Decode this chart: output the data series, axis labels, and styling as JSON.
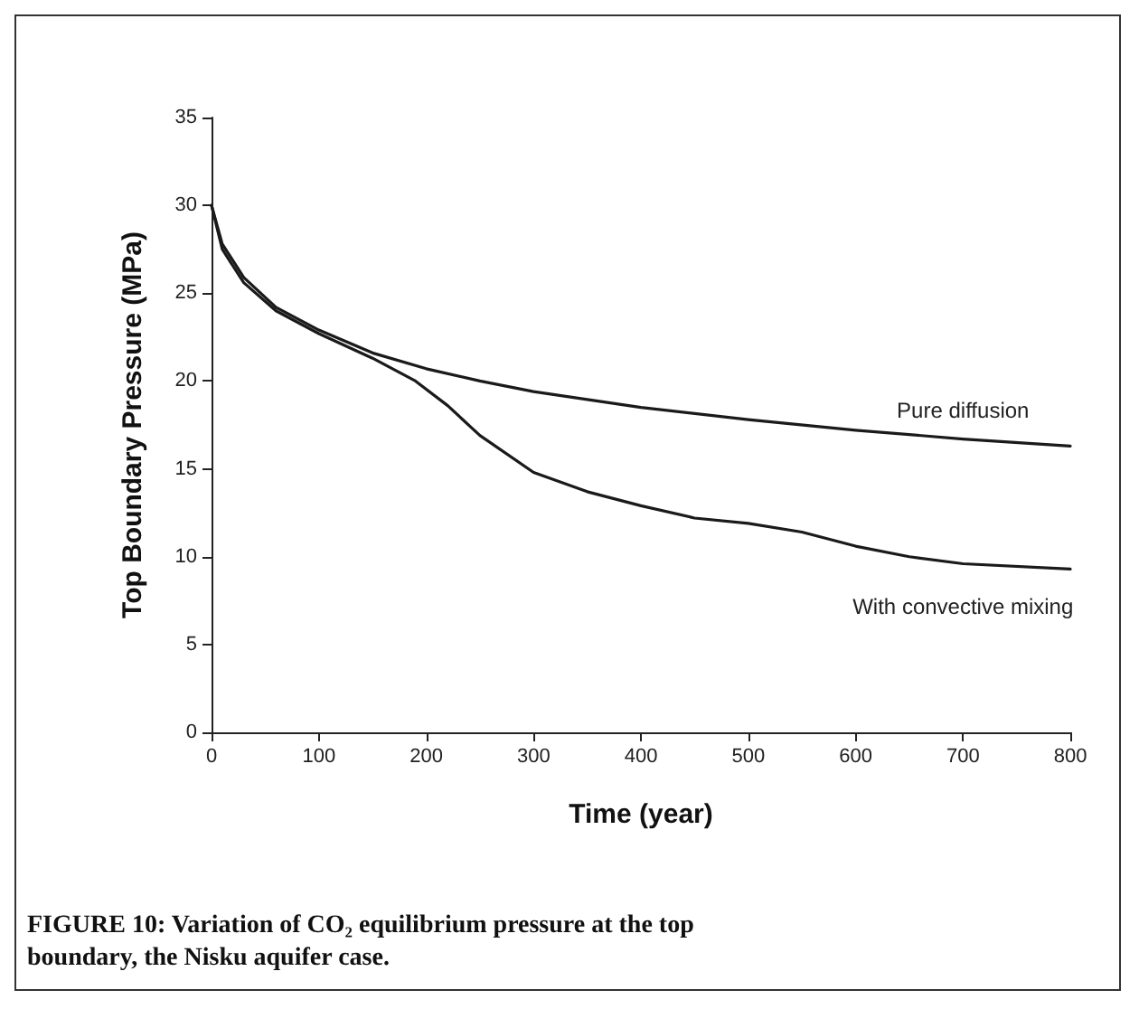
{
  "chart_data": {
    "type": "line",
    "xlabel": "Time (year)",
    "ylabel": "Top Boundary Pressure (MPa)",
    "xlim": [
      0,
      800
    ],
    "xticks": [
      0,
      100,
      200,
      300,
      400,
      500,
      600,
      700,
      800
    ],
    "ylim": [
      0,
      35
    ],
    "yticks": [
      0,
      5,
      10,
      15,
      20,
      25,
      30,
      35
    ],
    "grid": false,
    "legend": false,
    "marker": "none",
    "line_style": "solid",
    "annotations": [
      "FIGURE 10: Variation of CO₂ equilibrium pressure at the top boundary, the Nisku aquifer case."
    ],
    "series": [
      {
        "name": "Pure diffusion",
        "color": "#1a1a1a",
        "x": [
          0,
          10,
          30,
          60,
          100,
          150,
          200,
          250,
          300,
          400,
          500,
          600,
          700,
          800
        ],
        "values": [
          30,
          27.8,
          25.9,
          24.2,
          22.9,
          21.6,
          20.7,
          20.0,
          19.4,
          18.5,
          17.8,
          17.2,
          16.7,
          16.3
        ]
      },
      {
        "name": "With convective mixing",
        "color": "#1a1a1a",
        "x": [
          0,
          10,
          30,
          60,
          100,
          150,
          190,
          220,
          250,
          300,
          350,
          400,
          450,
          500,
          550,
          600,
          650,
          700,
          800
        ],
        "values": [
          30,
          27.5,
          25.6,
          24.0,
          22.7,
          21.3,
          20.0,
          18.6,
          16.9,
          14.8,
          13.7,
          12.9,
          12.2,
          11.9,
          11.4,
          10.6,
          10.0,
          9.6,
          9.3
        ]
      }
    ]
  }
}
